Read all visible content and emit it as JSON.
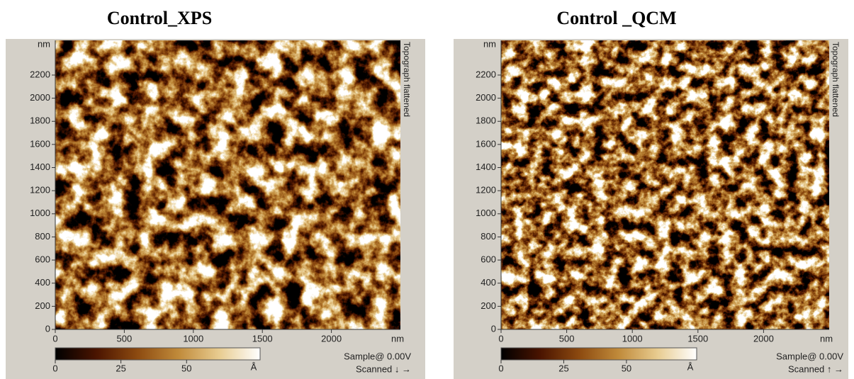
{
  "chart_data": [
    {
      "type": "heatmap",
      "title": "Control_XPS",
      "xlabel": "nm",
      "ylabel": "nm",
      "xlim": [
        0,
        2500
      ],
      "xticks": [
        0,
        500,
        1000,
        1500,
        2000
      ],
      "ylim": [
        0,
        2500
      ],
      "yticks": [
        0,
        200,
        400,
        600,
        800,
        1000,
        1200,
        1400,
        1600,
        1800,
        2000,
        2200
      ],
      "side_label": "Topograph flattened",
      "colormap": [
        "#000000",
        "#4a1400",
        "#8c4a10",
        "#c08a3a",
        "#e8cc90",
        "#ffffff"
      ],
      "colorbar": {
        "lim": [
          0,
          78
        ],
        "ticks": [
          0,
          25,
          50
        ],
        "unit": "Å"
      },
      "notes": [
        "Sample@ 0.00V",
        "Scanned ↓ →"
      ]
    },
    {
      "type": "heatmap",
      "title": "Control _QCM",
      "xlabel": "nm",
      "ylabel": "nm",
      "xlim": [
        0,
        2500
      ],
      "xticks": [
        0,
        500,
        1000,
        1500,
        2000
      ],
      "ylim": [
        0,
        2500
      ],
      "yticks": [
        0,
        200,
        400,
        600,
        800,
        1000,
        1200,
        1400,
        1600,
        1800,
        2000,
        2200
      ],
      "side_label": "Topograph flattened",
      "colormap": [
        "#000000",
        "#4a1400",
        "#8c4a10",
        "#c08a3a",
        "#e8cc90",
        "#ffffff"
      ],
      "colorbar": {
        "lim": [
          0,
          78
        ],
        "ticks": [
          0,
          25,
          50
        ],
        "unit": "Å"
      },
      "notes": [
        "Sample@ 0.00V",
        "Scanned ↑ →"
      ]
    }
  ]
}
